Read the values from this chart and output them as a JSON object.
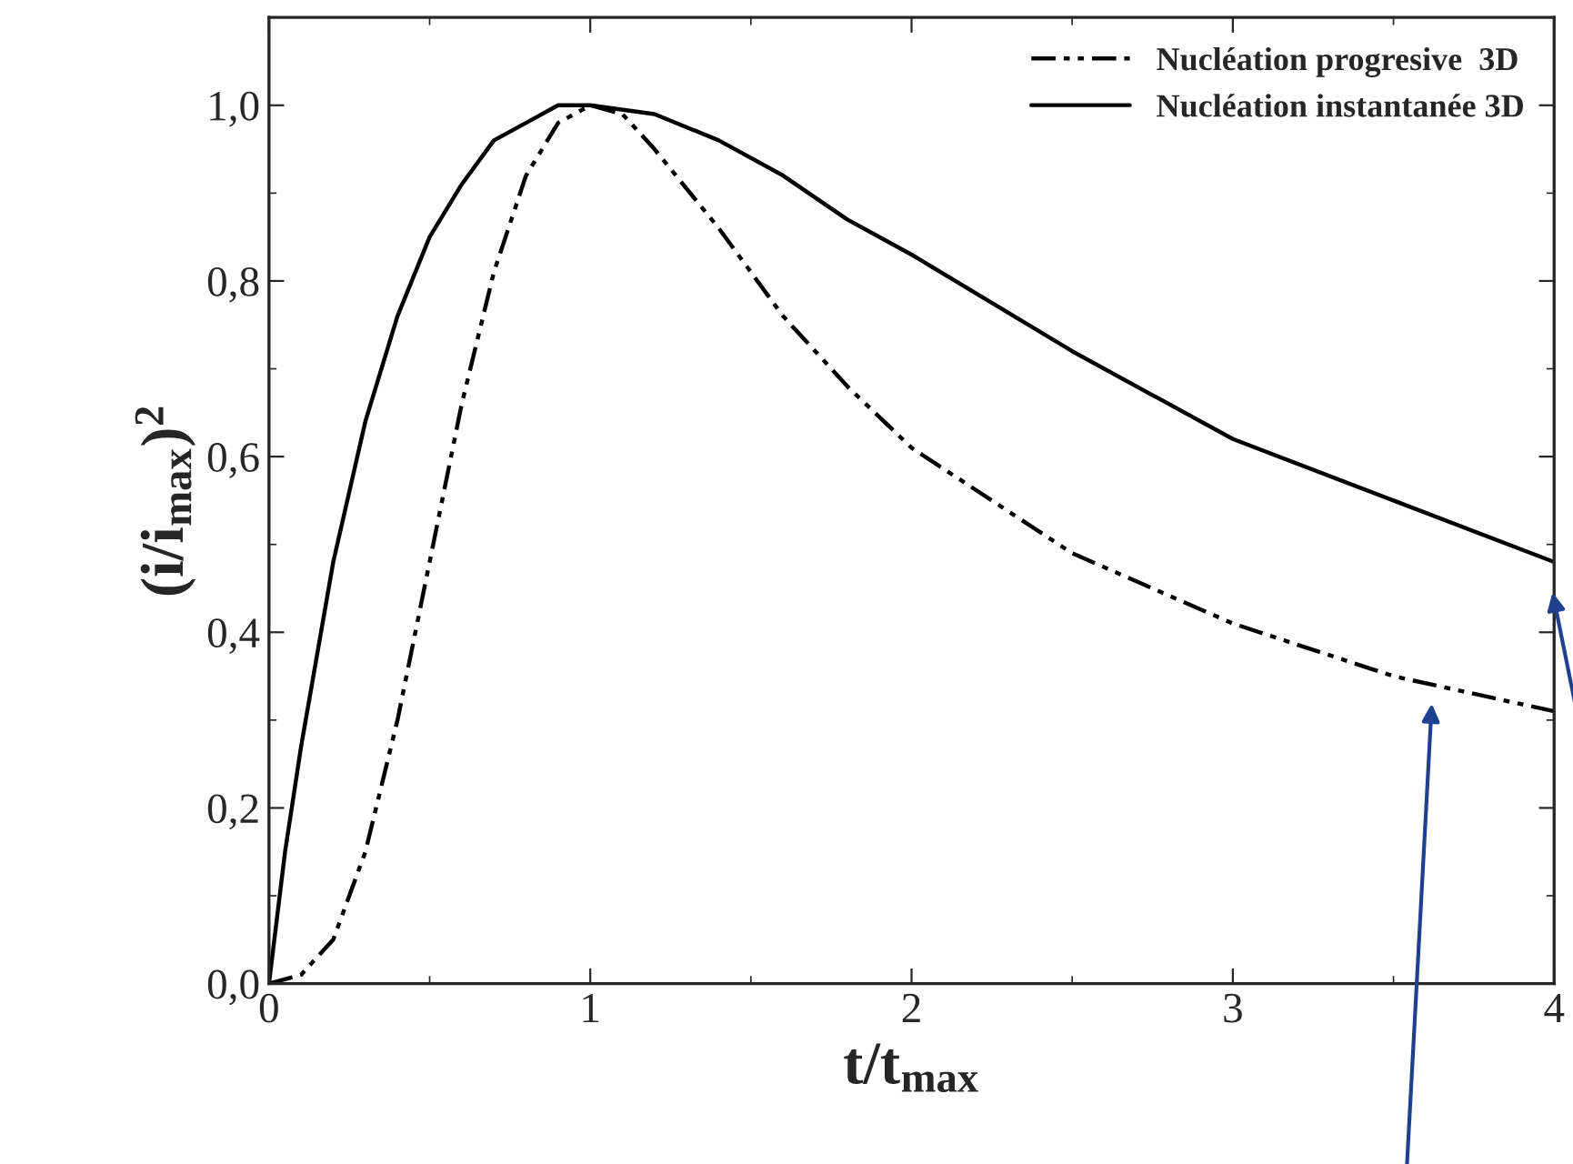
{
  "chart_data": {
    "type": "line",
    "xlabel": "t/t$_{max}$",
    "ylabel": "(i/i$_{max}$)$^{2}$",
    "xlim": [
      0,
      4
    ],
    "xticks": [
      0,
      1,
      2,
      3,
      4
    ],
    "ylim": [
      0,
      1.1
    ],
    "yticks": [
      {
        "value": 0,
        "label": "0,0"
      },
      {
        "value": 0.2,
        "label": "0,2"
      },
      {
        "value": 0.4,
        "label": "0,4"
      },
      {
        "value": 0.6,
        "label": "0,6"
      },
      {
        "value": 0.8,
        "label": "0,8"
      },
      {
        "value": 1.0,
        "label": "1,0"
      }
    ],
    "grid": false,
    "legend": "top right",
    "marker": "none",
    "series": [
      {
        "name": "Nucléation progresive  3D",
        "color": "#000000",
        "line_style": "dashed",
        "x": [
          0,
          0.1,
          0.2,
          0.3,
          0.4,
          0.5,
          0.6,
          0.7,
          0.8,
          0.9,
          1.0,
          1.1,
          1.2,
          1.4,
          1.6,
          1.8,
          2.0,
          2.5,
          3.0,
          3.5,
          4.0
        ],
        "values": [
          0,
          0.01,
          0.05,
          0.15,
          0.3,
          0.48,
          0.66,
          0.81,
          0.92,
          0.98,
          1.0,
          0.99,
          0.95,
          0.86,
          0.76,
          0.68,
          0.61,
          0.49,
          0.41,
          0.35,
          0.31
        ]
      },
      {
        "name": "Nucléation instantanée 3D",
        "color": "#000000",
        "line_style": "solid",
        "x": [
          0,
          0.05,
          0.1,
          0.2,
          0.3,
          0.4,
          0.5,
          0.6,
          0.7,
          0.8,
          0.9,
          1.0,
          1.2,
          1.4,
          1.6,
          1.8,
          2.0,
          2.5,
          3.0,
          3.5,
          4.0
        ],
        "values": [
          0,
          0.15,
          0.27,
          0.48,
          0.64,
          0.76,
          0.85,
          0.91,
          0.96,
          0.98,
          1.0,
          1.0,
          0.99,
          0.96,
          0.92,
          0.87,
          0.83,
          0.72,
          0.62,
          0.55,
          0.48
        ]
      }
    ]
  }
}
